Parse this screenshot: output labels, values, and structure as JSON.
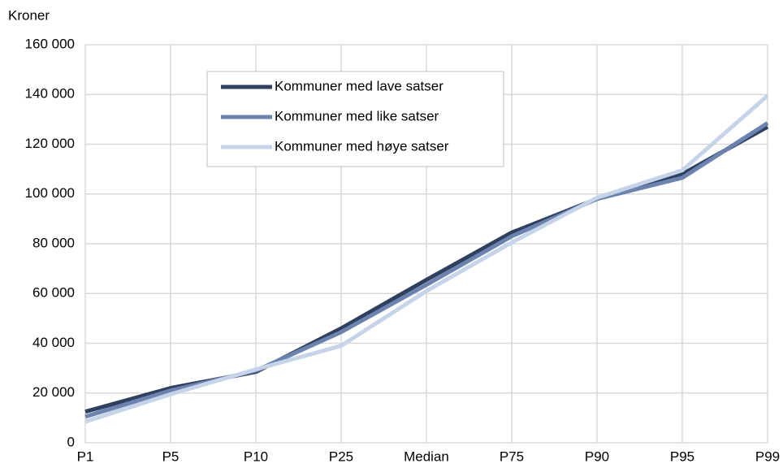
{
  "chart_data": {
    "type": "line",
    "y_label": "Kroner",
    "categories": [
      "P1",
      "P5",
      "P10",
      "P25",
      "Median",
      "P75",
      "P90",
      "P95",
      "P99"
    ],
    "series": [
      {
        "name": "Kommuner med lave satser",
        "color": "#2f3f5e",
        "values": [
          12500,
          22000,
          28500,
          46000,
          65500,
          84500,
          98000,
          108000,
          127000
        ]
      },
      {
        "name": "Kommuner med like satser",
        "color": "#6b83ae",
        "values": [
          10500,
          21000,
          29000,
          44500,
          63500,
          83000,
          98000,
          106500,
          128500
        ]
      },
      {
        "name": "Kommuner med høye satser",
        "color": "#c5d4e8",
        "values": [
          8500,
          19500,
          29500,
          39000,
          61000,
          80500,
          98500,
          109500,
          139500
        ]
      }
    ],
    "ylim": [
      0,
      160000
    ],
    "yticks": [
      0,
      {
        "value": 20000,
        "label": "20 000"
      },
      {
        "value": 40000,
        "label": "40 000"
      },
      {
        "value": 60000,
        "label": "60 000"
      },
      {
        "value": 80000,
        "label": "80 000"
      },
      {
        "value": 100000,
        "label": "100 000"
      },
      {
        "value": 120000,
        "label": "120 000"
      },
      {
        "value": 140000,
        "label": "140 000"
      },
      {
        "value": 160000,
        "label": "160 000"
      }
    ],
    "grid": true,
    "legend": "upper-left"
  }
}
